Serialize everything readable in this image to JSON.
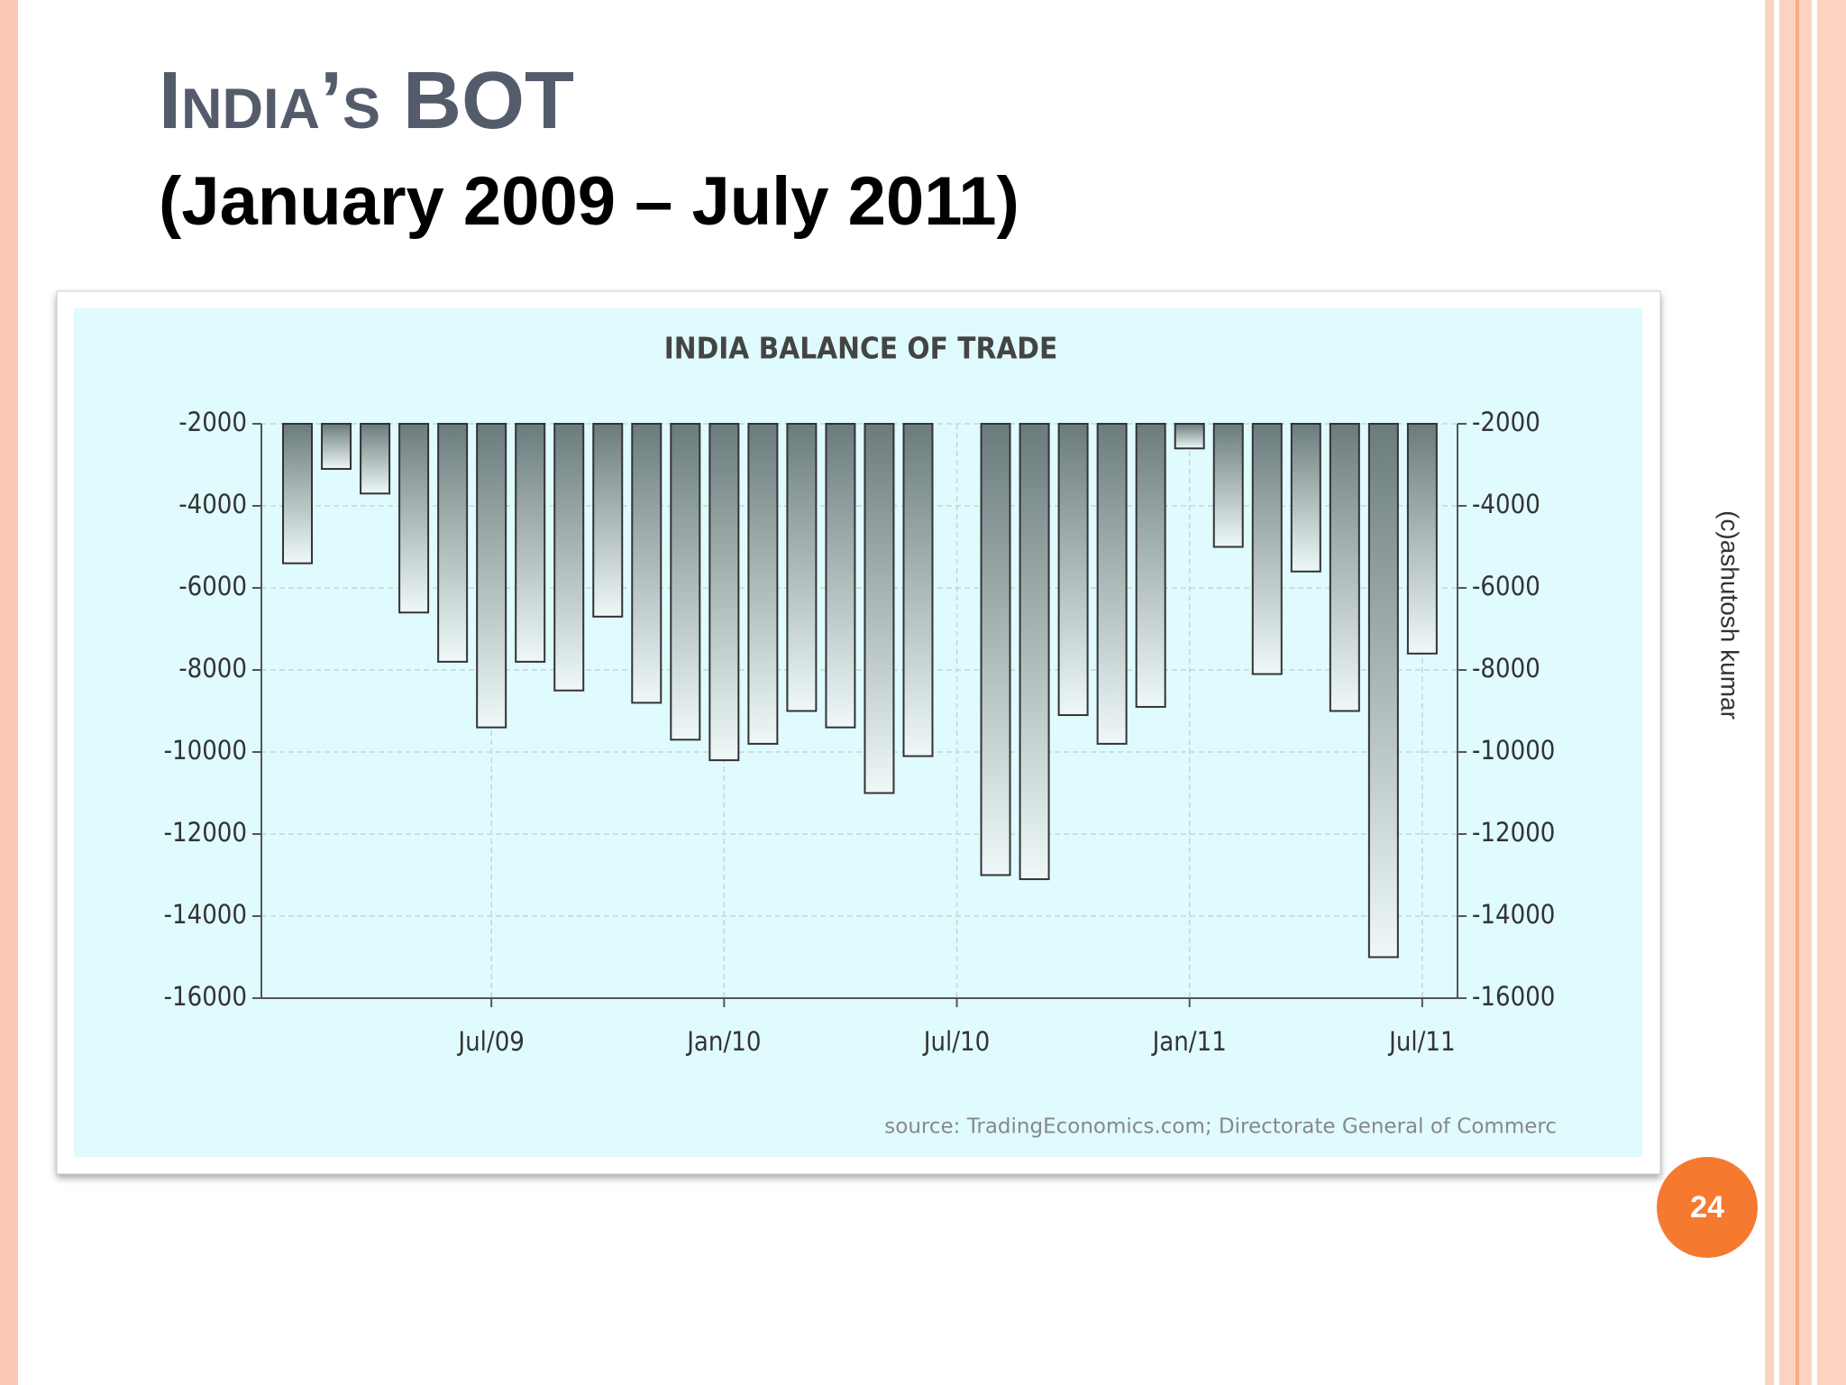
{
  "slide": {
    "title": "India’s  BOT",
    "subtitle": "(January 2009 – July 2011)",
    "watermark": "(c)ashutosh kumar",
    "page_number": "24"
  },
  "chart_data": {
    "type": "bar",
    "title": "INDIA BALANCE OF TRADE",
    "source": "source: TradingEconomics.com; Directorate General of Commerc",
    "categories": [
      null,
      null,
      null,
      null,
      null,
      "Jul/09",
      null,
      null,
      null,
      null,
      null,
      "Jan/10",
      null,
      null,
      null,
      null,
      null,
      "Jul/10",
      null,
      null,
      null,
      null,
      null,
      "Jan/11",
      null,
      null,
      null,
      null,
      null,
      "Jul/11"
    ],
    "values": [
      -5400,
      -3100,
      -3700,
      -6600,
      -7800,
      -9400,
      -7800,
      -8500,
      -6700,
      -8800,
      -9700,
      -10200,
      -9800,
      -9000,
      -9400,
      -11000,
      -10100,
      null,
      -13000,
      -13100,
      -9100,
      -9800,
      -8900,
      -2600,
      -5000,
      -8100,
      -5600,
      -9000,
      -15000,
      -7600
    ],
    "ylim": [
      -16000,
      -2000
    ],
    "yticks": [
      -2000,
      -4000,
      -6000,
      -8000,
      -10000,
      -12000,
      -14000,
      -16000
    ],
    "y2lim": [
      -16000,
      -2000
    ],
    "y2ticks": [
      -2000,
      -4000,
      -6000,
      -8000,
      -10000,
      -12000,
      -14000,
      -16000
    ],
    "grid": true
  }
}
